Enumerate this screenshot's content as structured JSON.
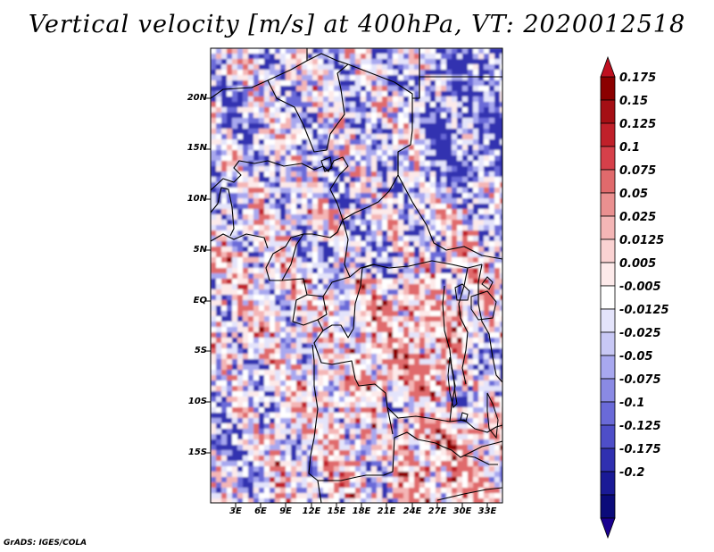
{
  "title": "Vertical velocity [m/s] at 400hPa, VT: 2020012518",
  "credit": "GrADS: IGES/COLA",
  "map": {
    "lat_labels": [
      "20N",
      "15N",
      "10N",
      "5N",
      "EQ",
      "5S",
      "10S",
      "15S"
    ],
    "lon_labels": [
      "3E",
      "6E",
      "9E",
      "12E",
      "15E",
      "18E",
      "21E",
      "24E",
      "27E",
      "30E",
      "33E"
    ]
  },
  "colorbar": {
    "labels": [
      "0.175",
      "0.15",
      "0.125",
      "0.1",
      "0.075",
      "0.05",
      "0.025",
      "0.0125",
      "0.005",
      "-0.005",
      "-0.0125",
      "-0.025",
      "-0.05",
      "-0.075",
      "-0.1",
      "-0.125",
      "-0.175",
      "-0.2"
    ],
    "colors": [
      "#8b0000",
      "#a50f15",
      "#c0202a",
      "#d6404a",
      "#e06a6c",
      "#ea9090",
      "#f4b6b6",
      "#fad2d2",
      "#fdeaea",
      "#ffffff",
      "#e4e4fb",
      "#c8c8f5",
      "#a8a8ef",
      "#8a8ae4",
      "#6a6ad8",
      "#4e4ec8",
      "#3030b0",
      "#1a1a96",
      "#0b0b7a"
    ],
    "low_color": "#1a0090",
    "high_color": "#c01020"
  },
  "chart_data": {
    "type": "heatmap",
    "title": "Vertical velocity [m/s] at 400hPa, VT: 2020012518",
    "variable": "Vertical velocity",
    "units": "m/s",
    "level": "400hPa",
    "valid_time": "2020012518",
    "x_ticks": [
      "3E",
      "6E",
      "9E",
      "12E",
      "15E",
      "18E",
      "21E",
      "24E",
      "27E",
      "30E",
      "33E"
    ],
    "y_ticks": [
      "20N",
      "15N",
      "10N",
      "5N",
      "EQ",
      "5S",
      "10S",
      "15S"
    ],
    "levels": [
      -0.2,
      -0.175,
      -0.125,
      -0.1,
      -0.075,
      -0.05,
      -0.025,
      -0.0125,
      -0.005,
      0.005,
      0.0125,
      0.025,
      0.05,
      0.075,
      0.1,
      0.125,
      0.15,
      0.175
    ]
  }
}
